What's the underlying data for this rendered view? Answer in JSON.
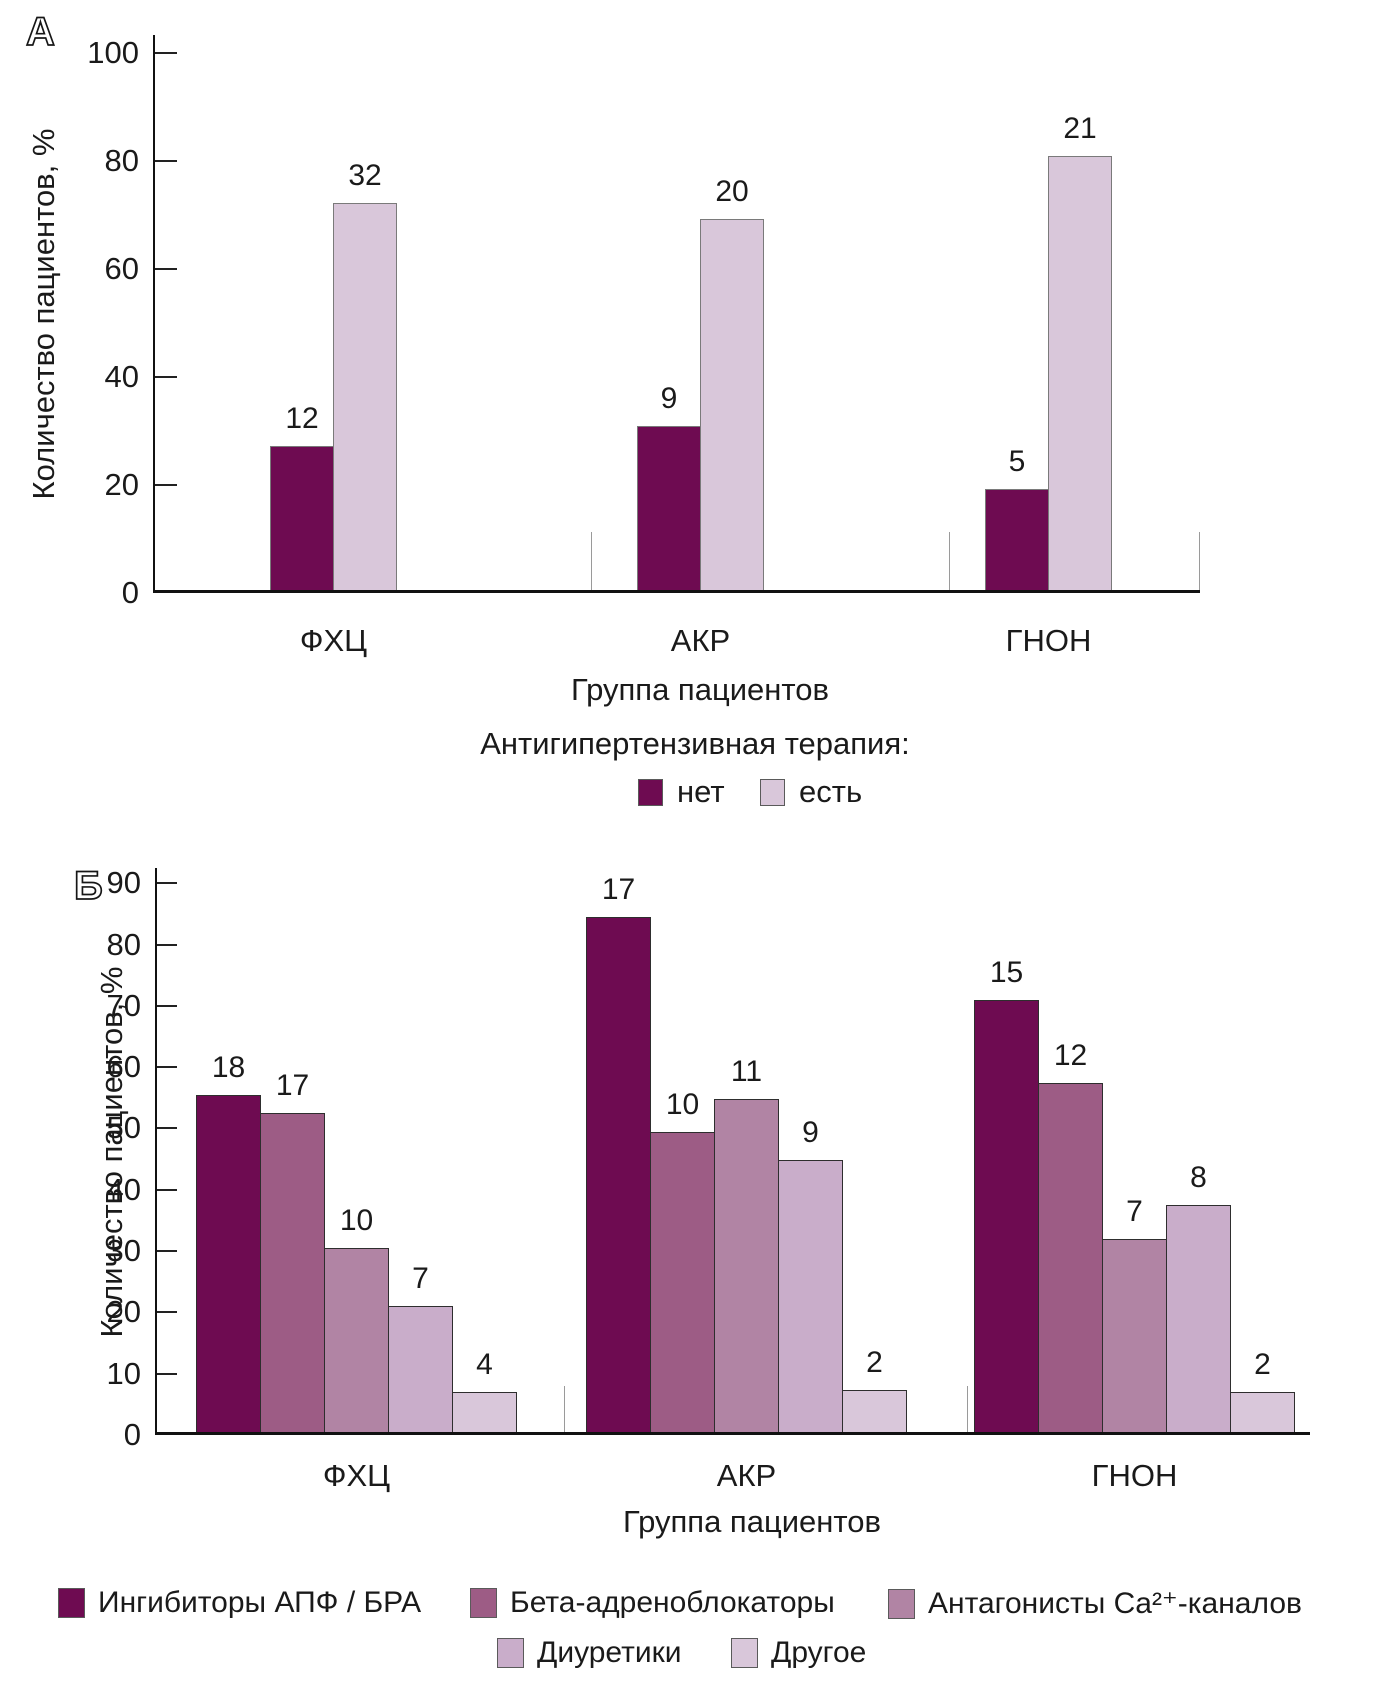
{
  "figure": {
    "xlabel_a": "Группа пациентов",
    "xlabel_b": "Группа пациентов"
  },
  "chart_data": [
    {
      "id": "A",
      "type": "bar",
      "panel_letter": "А",
      "ylabel": "Количество пациентов, %",
      "xlabel": "Группа пациентов",
      "ylim": [
        0,
        100
      ],
      "yticks": [
        0,
        20,
        40,
        60,
        80,
        100
      ],
      "grid": false,
      "legend_position": "bottom",
      "legend_title": "Антигипертензивная терапия:",
      "categories": [
        "ФХЦ",
        "АКР",
        "ГНОН"
      ],
      "series": [
        {
          "name": "нет",
          "color": "#6E0B51",
          "values": [
            12,
            9,
            5
          ],
          "heights_pct": [
            27.3,
            30.9,
            19.2
          ]
        },
        {
          "name": "есть",
          "color": "#D9C7DA",
          "values": [
            32,
            20,
            21
          ],
          "heights_pct": [
            72.3,
            69.2,
            81.0
          ]
        }
      ]
    },
    {
      "id": "B",
      "type": "bar",
      "panel_letter": "Б",
      "ylabel": "Количество пациентов, %",
      "xlabel": "Группа пациентов",
      "ylim": [
        0,
        90
      ],
      "yticks": [
        0,
        10,
        20,
        30,
        40,
        50,
        60,
        70,
        80,
        90
      ],
      "grid": false,
      "legend_position": "bottom",
      "categories": [
        "ФХЦ",
        "АКР",
        "ГНОН"
      ],
      "series": [
        {
          "name": "Ингибиторы АПФ / БРА",
          "color": "#6E0B51",
          "values": [
            18,
            17,
            15
          ],
          "heights_pct": [
            55.5,
            84.5,
            71.0
          ]
        },
        {
          "name": "Бета-адреноблокаторы",
          "color": "#9D5C85",
          "values": [
            17,
            10,
            12
          ],
          "heights_pct": [
            52.5,
            49.5,
            57.5
          ]
        },
        {
          "name": "Антагонисты Ca²⁺-каналов",
          "color": "#B184A4",
          "values": [
            10,
            11,
            7
          ],
          "heights_pct": [
            30.5,
            54.8,
            32.0
          ]
        },
        {
          "name": "Диуретики",
          "color": "#C9ADCA",
          "values": [
            7,
            9,
            8
          ],
          "heights_pct": [
            21.0,
            44.8,
            37.5
          ]
        },
        {
          "name": "Другое",
          "color": "#D9C7DA",
          "values": [
            4,
            2,
            2
          ],
          "heights_pct": [
            7.0,
            7.3,
            7.0
          ]
        }
      ]
    }
  ]
}
